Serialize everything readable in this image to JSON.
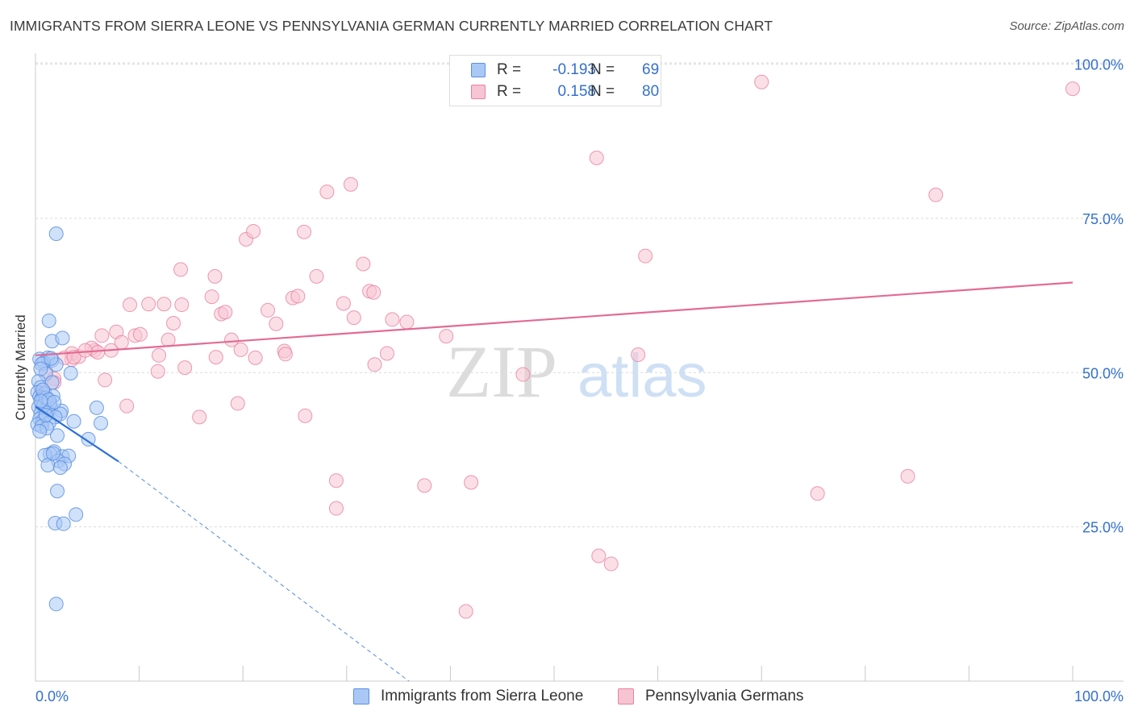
{
  "title": "IMMIGRANTS FROM SIERRA LEONE VS PENNSYLVANIA GERMAN CURRENTLY MARRIED CORRELATION CHART",
  "source": "Source: ZipAtlas.com",
  "watermark": {
    "zip": "ZIP",
    "atlas": "atlas"
  },
  "legend": {
    "r_label": "R =",
    "n_label": "N =",
    "series1": {
      "r": "-0.193",
      "n": "69"
    },
    "series2": {
      "r": "0.158",
      "n": "80"
    }
  },
  "colors": {
    "blue_fill": "#a9c8f5",
    "blue_stroke": "#5b8fe0",
    "blue_line": "#2b6fd6",
    "pink_fill": "#f7c4d4",
    "pink_stroke": "#e8809f",
    "pink_line": "#e26b93",
    "tick_text": "#3470cc",
    "grid": "#d9d9d9"
  },
  "chart_data": {
    "type": "scatter",
    "title": "IMMIGRANTS FROM SIERRA LEONE VS PENNSYLVANIA GERMAN CURRENTLY MARRIED CORRELATION CHART",
    "xlabel": "",
    "ylabel": "Currently Married",
    "xlim": [
      0,
      100
    ],
    "ylim": [
      0,
      102
    ],
    "x_tick_labels": [
      "0.0%",
      "100.0%"
    ],
    "y_ticks": [
      25,
      50,
      75,
      100
    ],
    "y_tick_labels": [
      "25.0%",
      "50.0%",
      "75.0%",
      "100.0%"
    ],
    "grid": true,
    "legend_position": "top-center",
    "series": [
      {
        "name": "Immigrants from Sierra Leone",
        "color": "blue",
        "r": -0.193,
        "n": 69,
        "trend": {
          "x": [
            0,
            8
          ],
          "y": [
            44.5,
            35.6
          ],
          "dashed_to": [
            36,
            0
          ]
        },
        "points": [
          [
            0.4,
            52.2
          ],
          [
            1.2,
            52.4
          ],
          [
            1.6,
            52.0
          ],
          [
            0.8,
            51.6
          ],
          [
            0.6,
            51.4
          ],
          [
            2.0,
            51.3
          ],
          [
            1.0,
            49.8
          ],
          [
            3.4,
            49.9
          ],
          [
            0.3,
            48.6
          ],
          [
            0.5,
            47.6
          ],
          [
            1.6,
            48.4
          ],
          [
            0.2,
            46.8
          ],
          [
            0.9,
            46.6
          ],
          [
            1.7,
            46.2
          ],
          [
            0.4,
            46.1
          ],
          [
            0.6,
            45.8
          ],
          [
            0.7,
            45.5
          ],
          [
            1.1,
            45.3
          ],
          [
            1.4,
            45.1
          ],
          [
            0.8,
            44.8
          ],
          [
            0.6,
            44.6
          ],
          [
            0.3,
            44.4
          ],
          [
            1.5,
            44.2
          ],
          [
            0.9,
            43.9
          ],
          [
            1.2,
            43.6
          ],
          [
            2.5,
            43.8
          ],
          [
            0.5,
            43.4
          ],
          [
            2.4,
            43.3
          ],
          [
            1.9,
            42.8
          ],
          [
            0.4,
            42.5
          ],
          [
            0.7,
            42.2
          ],
          [
            3.7,
            42.1
          ],
          [
            1.3,
            41.8
          ],
          [
            0.2,
            41.6
          ],
          [
            0.6,
            41.3
          ],
          [
            1.1,
            41.0
          ],
          [
            6.3,
            41.8
          ],
          [
            5.9,
            44.3
          ],
          [
            2.1,
            39.8
          ],
          [
            5.1,
            39.2
          ],
          [
            1.8,
            37.2
          ],
          [
            1.4,
            36.8
          ],
          [
            2.6,
            36.4
          ],
          [
            3.2,
            36.5
          ],
          [
            0.9,
            36.6
          ],
          [
            2.2,
            35.7
          ],
          [
            2.8,
            35.2
          ],
          [
            1.2,
            35.0
          ],
          [
            2.4,
            34.6
          ],
          [
            2.1,
            30.8
          ],
          [
            3.9,
            27.0
          ],
          [
            1.9,
            25.6
          ],
          [
            2.7,
            25.5
          ],
          [
            2.0,
            12.5
          ],
          [
            2.0,
            72.5
          ],
          [
            1.3,
            58.4
          ],
          [
            1.6,
            55.1
          ],
          [
            2.6,
            55.6
          ],
          [
            1.5,
            52.3
          ],
          [
            0.5,
            50.6
          ],
          [
            0.8,
            44.7
          ],
          [
            1.0,
            43.1
          ],
          [
            0.4,
            40.5
          ],
          [
            1.7,
            36.9
          ],
          [
            1.0,
            45.9
          ],
          [
            0.7,
            47.2
          ],
          [
            1.3,
            45.6
          ],
          [
            1.8,
            45.2
          ],
          [
            0.5,
            45.4
          ]
        ]
      },
      {
        "name": "Pennsylvania Germans",
        "color": "pink",
        "r": 0.158,
        "n": 80,
        "trend": {
          "x": [
            0,
            100
          ],
          "y": [
            52.8,
            64.6
          ]
        },
        "points": [
          [
            0.6,
            47.1
          ],
          [
            1.0,
            50.2
          ],
          [
            1.8,
            49.0
          ],
          [
            1.8,
            48.4
          ],
          [
            3.5,
            52.1
          ],
          [
            3.5,
            53.1
          ],
          [
            4.2,
            52.6
          ],
          [
            5.7,
            53.6
          ],
          [
            5.4,
            54.0
          ],
          [
            6.4,
            56.0
          ],
          [
            7.3,
            53.6
          ],
          [
            7.8,
            56.6
          ],
          [
            8.3,
            54.9
          ],
          [
            9.6,
            56.0
          ],
          [
            10.1,
            56.2
          ],
          [
            6.7,
            48.8
          ],
          [
            8.8,
            44.6
          ],
          [
            9.1,
            61.0
          ],
          [
            10.9,
            61.1
          ],
          [
            12.4,
            61.1
          ],
          [
            14.1,
            61.0
          ],
          [
            11.8,
            50.2
          ],
          [
            11.9,
            52.8
          ],
          [
            12.8,
            55.3
          ],
          [
            13.3,
            58.0
          ],
          [
            14.0,
            66.7
          ],
          [
            14.4,
            50.8
          ],
          [
            15.8,
            42.8
          ],
          [
            17.0,
            62.3
          ],
          [
            17.3,
            65.6
          ],
          [
            17.4,
            52.5
          ],
          [
            17.9,
            59.5
          ],
          [
            18.3,
            59.8
          ],
          [
            18.9,
            55.3
          ],
          [
            19.8,
            53.7
          ],
          [
            19.5,
            45.0
          ],
          [
            20.3,
            71.6
          ],
          [
            21.0,
            72.9
          ],
          [
            21.2,
            52.4
          ],
          [
            22.4,
            60.1
          ],
          [
            23.2,
            57.9
          ],
          [
            24.0,
            53.5
          ],
          [
            24.1,
            53.0
          ],
          [
            24.8,
            62.1
          ],
          [
            25.3,
            62.4
          ],
          [
            25.9,
            72.8
          ],
          [
            26.0,
            43.0
          ],
          [
            27.1,
            65.6
          ],
          [
            28.1,
            79.3
          ],
          [
            29.0,
            32.5
          ],
          [
            29.0,
            28.0
          ],
          [
            30.4,
            80.5
          ],
          [
            29.7,
            61.2
          ],
          [
            30.7,
            58.9
          ],
          [
            31.6,
            67.6
          ],
          [
            32.2,
            63.2
          ],
          [
            32.6,
            63.0
          ],
          [
            32.7,
            51.3
          ],
          [
            33.9,
            53.1
          ],
          [
            34.4,
            58.6
          ],
          [
            35.8,
            58.2
          ],
          [
            37.5,
            31.7
          ],
          [
            39.6,
            55.9
          ],
          [
            41.5,
            11.3
          ],
          [
            42.0,
            32.2
          ],
          [
            47.0,
            49.7
          ],
          [
            54.1,
            84.8
          ],
          [
            54.3,
            20.3
          ],
          [
            55.5,
            19.0
          ],
          [
            58.1,
            52.9
          ],
          [
            58.8,
            68.9
          ],
          [
            70.0,
            97.1
          ],
          [
            75.4,
            30.4
          ],
          [
            84.1,
            33.2
          ],
          [
            86.8,
            78.8
          ],
          [
            100.0,
            96.0
          ],
          [
            2.8,
            52.4
          ],
          [
            3.7,
            52.5
          ],
          [
            6.0,
            53.3
          ],
          [
            4.8,
            53.6
          ]
        ]
      }
    ]
  }
}
